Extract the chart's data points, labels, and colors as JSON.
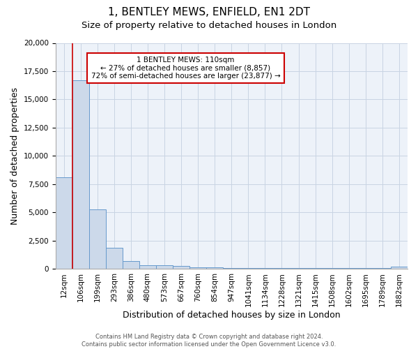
{
  "title1": "1, BENTLEY MEWS, ENFIELD, EN1 2DT",
  "title2": "Size of property relative to detached houses in London",
  "xlabel": "Distribution of detached houses by size in London",
  "ylabel": "Number of detached properties",
  "categories": [
    "12sqm",
    "106sqm",
    "199sqm",
    "293sqm",
    "386sqm",
    "480sqm",
    "573sqm",
    "667sqm",
    "760sqm",
    "854sqm",
    "947sqm",
    "1041sqm",
    "1134sqm",
    "1228sqm",
    "1321sqm",
    "1415sqm",
    "1508sqm",
    "1602sqm",
    "1695sqm",
    "1789sqm",
    "1882sqm"
  ],
  "values": [
    8100,
    16700,
    5300,
    1850,
    700,
    350,
    300,
    250,
    170,
    130,
    110,
    100,
    90,
    85,
    80,
    75,
    70,
    65,
    60,
    55,
    200
  ],
  "bar_color": "#ccd9ea",
  "bar_edge_color": "#6699cc",
  "line_color": "#cc0000",
  "annotation_text": "1 BENTLEY MEWS: 110sqm\n← 27% of detached houses are smaller (8,857)\n72% of semi-detached houses are larger (23,877) →",
  "annotation_box_color": "white",
  "annotation_box_edge": "#cc0000",
  "grid_color": "#c8d4e3",
  "bg_color": "#edf2f9",
  "footer": "Contains HM Land Registry data © Crown copyright and database right 2024.\nContains public sector information licensed under the Open Government Licence v3.0.",
  "ylim": [
    0,
    20000
  ],
  "title_fontsize": 11,
  "subtitle_fontsize": 9.5,
  "tick_fontsize": 7.5,
  "ylabel_fontsize": 9,
  "xlabel_fontsize": 9,
  "footer_fontsize": 6,
  "annotation_fontsize": 7.5
}
